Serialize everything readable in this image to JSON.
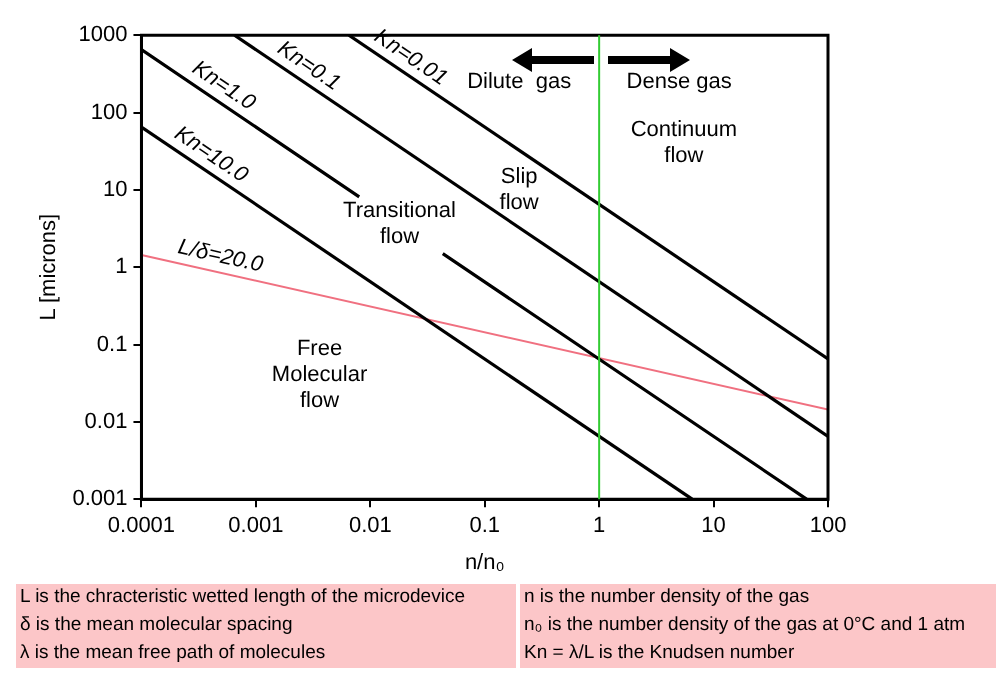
{
  "chart_data": {
    "type": "line",
    "xlabel": "n/n₀",
    "ylabel": "L [microns]",
    "log": "xy",
    "xlim": [
      0.0001,
      100
    ],
    "ylim": [
      0.001,
      1000
    ],
    "xticks": [
      0.0001,
      0.001,
      0.01,
      0.1,
      1,
      10,
      100
    ],
    "yticks": [
      0.001,
      0.01,
      0.1,
      1,
      10,
      100,
      1000
    ],
    "grid": false,
    "legend": false,
    "marker": "none",
    "line_style": "solid",
    "series": [
      {
        "name": "Kn=0.01",
        "color": "#000000",
        "x": [
          0.0065,
          100
        ],
        "values": [
          1000,
          0.065
        ]
      },
      {
        "name": "Kn=0.1",
        "color": "#000000",
        "x": [
          0.00065,
          100
        ],
        "values": [
          1000,
          0.0065
        ]
      },
      {
        "name": "Kn=1.0",
        "color": "#000000",
        "x": [
          0.0001,
          0.008,
          0.02,
          0.043,
          65
        ],
        "values": [
          650,
          8.1,
          null,
          1.5,
          0.001
        ]
      },
      {
        "name": "Kn=10.0",
        "color": "#000000",
        "x": [
          0.0001,
          6.5
        ],
        "values": [
          65,
          0.001
        ]
      },
      {
        "name": "L/δ=20.0",
        "color": "#f07080",
        "x": [
          0.0001,
          100
        ],
        "values": [
          1.44,
          0.0144
        ]
      }
    ],
    "ref_lines": [
      {
        "axis": "x",
        "value": 1,
        "color": "#33cc33"
      }
    ],
    "annotations": [
      "Dilute  gas",
      "Dense gas",
      "Continuum\nflow",
      "Slip\nflow",
      "Transitional\nflow",
      "Free\nMolecular\nflow",
      "L is the chracteristic wetted length of the microdevice",
      "n is the number density of the gas",
      "δ is the mean molecular spacing",
      "n₀ is the number density of the gas at 0°C and 1 atm",
      "λ is the mean free path of molecules",
      "Kn = λ/L is the Knudsen number"
    ]
  }
}
